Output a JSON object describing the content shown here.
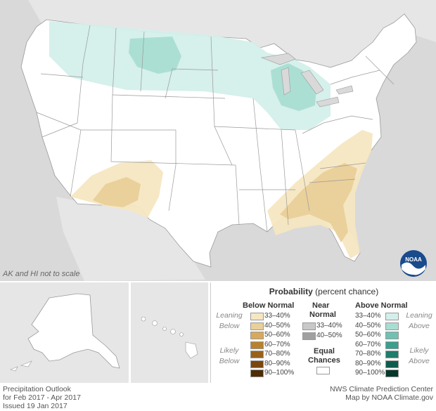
{
  "map": {
    "scale_note": "AK and HI not to scale",
    "logo_text": "NOAA",
    "colors": {
      "land": "#ffffff",
      "background": "#d9d9d9",
      "state_border": "#9a9a9a",
      "above_33_40": "#d4efea",
      "above_40_50": "#a9ddd3",
      "below_33_40": "#f6e7c1",
      "below_40_50": "#e9cf99"
    }
  },
  "legend": {
    "title_bold": "Probability",
    "title_rest": " (percent chance)",
    "below_header": "Below Normal",
    "near_header_line1": "Near",
    "near_header_line2": "Normal",
    "above_header": "Above Normal",
    "leaning_below": "Leaning Below",
    "likely_below": "Likely Below",
    "leaning_above": "Leaning Above",
    "likely_above": "Likely Above",
    "equal_line1": "Equal",
    "equal_line2": "Chances",
    "below_items": [
      {
        "label": "33–40%",
        "color": "#f6e7c1"
      },
      {
        "label": "40–50%",
        "color": "#e9cf99"
      },
      {
        "label": "50–60%",
        "color": "#d7a95c"
      },
      {
        "label": "60–70%",
        "color": "#b8822d"
      },
      {
        "label": "70–80%",
        "color": "#9a6219"
      },
      {
        "label": "80–90%",
        "color": "#7a4710"
      },
      {
        "label": "90–100%",
        "color": "#4e2c06"
      }
    ],
    "near_items": [
      {
        "label": "33–40%",
        "color": "#c8c8c8"
      },
      {
        "label": "40–50%",
        "color": "#a0a0a0"
      }
    ],
    "above_items": [
      {
        "label": "33–40%",
        "color": "#d4efea"
      },
      {
        "label": "40–50%",
        "color": "#a9ddd3"
      },
      {
        "label": "50–60%",
        "color": "#6fc2b1"
      },
      {
        "label": "60–70%",
        "color": "#3a9f8c"
      },
      {
        "label": "70–80%",
        "color": "#1f7d6a"
      },
      {
        "label": "80–90%",
        "color": "#0f5c4c"
      },
      {
        "label": "90–100%",
        "color": "#06372c"
      }
    ]
  },
  "footer": {
    "left_line1": "Precipitation Outlook",
    "left_line2": "for Feb 2017 - Apr 2017",
    "left_line3": "Issued 19 Jan 2017",
    "right_line1": "NWS Climate Prediction Center",
    "right_line2": "Map by NOAA Climate.gov"
  }
}
